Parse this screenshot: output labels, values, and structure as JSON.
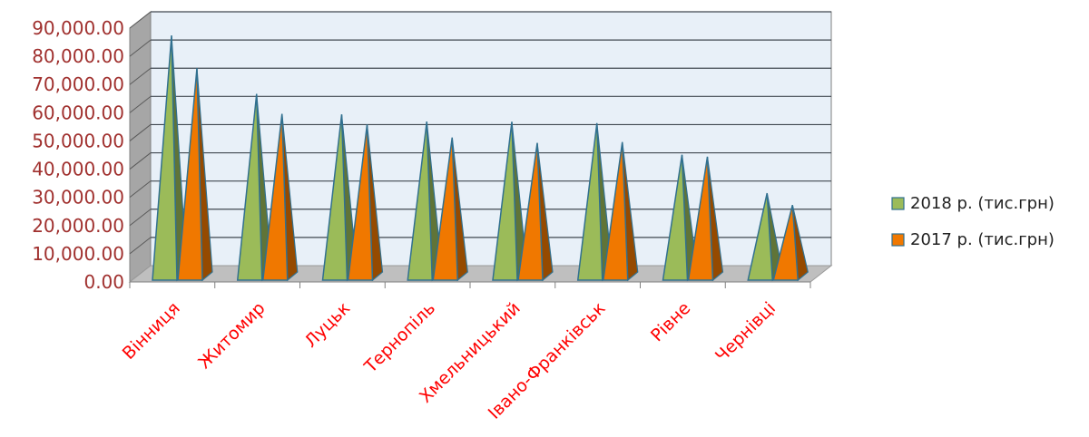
{
  "chart_data": {
    "type": "bar",
    "style": "3d-pyramid",
    "categories": [
      "Вінниця",
      "Житомир",
      "Луцьк",
      "Тернопіль",
      "Хмельницький",
      "Івано-Франківськ",
      "Рівне",
      "Чернівці"
    ],
    "series": [
      {
        "name": "2018 р. (тис.грн)",
        "values": [
          84200,
          63500,
          56200,
          53700,
          53600,
          53100,
          41900,
          28300
        ],
        "color": "#9BBB59"
      },
      {
        "name": "2017 р. (тис.грн)",
        "values": [
          72600,
          56400,
          52600,
          48000,
          46100,
          46400,
          41200,
          24100
        ],
        "color": "#F07800"
      }
    ],
    "ylim": [
      0,
      90000
    ],
    "yticks": [
      "0.00",
      "10,000.00",
      "20,000.00",
      "30,000.00",
      "40,000.00",
      "50,000.00",
      "60,000.00",
      "70,000.00",
      "80,000.00",
      "90,000.00"
    ],
    "title": "",
    "xlabel": "",
    "ylabel": "",
    "grid": true,
    "legend_position": "right",
    "colors": {
      "ytick": "#A0302E",
      "xtick": "#FF0000",
      "plot_bg": "#E8F0F8",
      "grid": "#404850"
    }
  }
}
